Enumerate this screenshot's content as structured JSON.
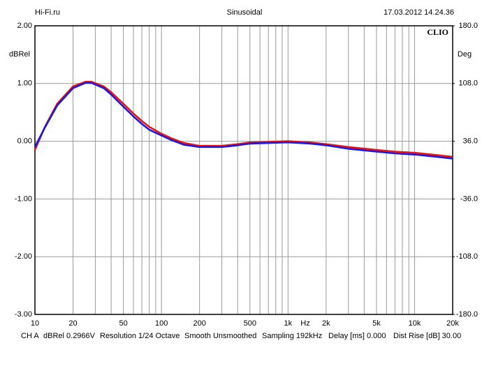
{
  "chart_data": {
    "type": "line",
    "source": "Hi-Fi.ru",
    "title": "Sinusoidal",
    "date": "17.03.2012 14.24.36",
    "logo": "CLIO",
    "ylabel": "dBRel",
    "y2label": "Deg",
    "xlabel": "Hz",
    "footer": [
      "CH A",
      "dBRel 0.2966V",
      "Resolution 1/24 Octave",
      "Smooth Unsmoothed",
      "Sampling 192kHz",
      "Delay [ms] 0.000",
      "Dist Rise [dB] 30.00"
    ],
    "xscale": "log",
    "grid": true,
    "xlim": [
      10,
      20000
    ],
    "xticks": [
      10,
      20,
      50,
      100,
      200,
      500,
      {
        "value": 1000,
        "label": "1k"
      },
      {
        "value": 2000,
        "label": "2k"
      },
      {
        "value": 5000,
        "label": "5k"
      },
      {
        "value": 10000,
        "label": "10k"
      },
      {
        "value": 20000,
        "label": "20k"
      }
    ],
    "xminor": [
      30,
      40,
      60,
      70,
      80,
      90,
      300,
      400,
      600,
      700,
      800,
      900,
      3000,
      4000,
      6000,
      7000,
      8000,
      9000
    ],
    "ylim": [
      -3,
      2
    ],
    "yticks": [
      {
        "value": 2,
        "label": "2.00"
      },
      {
        "value": 1,
        "label": "1.00"
      },
      {
        "value": 0,
        "label": "0.00"
      },
      {
        "value": -1,
        "label": "-1.00"
      },
      {
        "value": -2,
        "label": "-2.00"
      },
      {
        "value": -3,
        "label": "-3.00"
      }
    ],
    "y2lim": [
      -180,
      180
    ],
    "y2ticks": [
      {
        "value": 180,
        "label": "180.0"
      },
      {
        "value": 108,
        "label": "108.0"
      },
      {
        "value": 36,
        "label": "36.0"
      },
      {
        "value": -36,
        "label": "-36.0"
      },
      {
        "value": -108,
        "label": "-108.0"
      },
      {
        "value": -180,
        "label": "-180.0"
      }
    ],
    "x": [
      10,
      12,
      15,
      20,
      25,
      28,
      35,
      40,
      50,
      60,
      70,
      80,
      100,
      120,
      150,
      200,
      300,
      400,
      500,
      700,
      1000,
      1500,
      2000,
      3000,
      5000,
      7000,
      10000,
      15000,
      20000
    ],
    "series": [
      {
        "color": "#e8141a",
        "values": [
          -0.15,
          0.25,
          0.65,
          0.95,
          1.03,
          1.03,
          0.95,
          0.85,
          0.65,
          0.48,
          0.35,
          0.25,
          0.13,
          0.05,
          -0.03,
          -0.08,
          -0.08,
          -0.05,
          -0.02,
          -0.01,
          0.0,
          -0.02,
          -0.05,
          -0.1,
          -0.15,
          -0.18,
          -0.2,
          -0.24,
          -0.27
        ]
      },
      {
        "color": "#1a1adc",
        "values": [
          -0.1,
          0.24,
          0.62,
          0.92,
          1.01,
          1.01,
          0.92,
          0.81,
          0.6,
          0.43,
          0.3,
          0.2,
          0.1,
          0.02,
          -0.06,
          -0.1,
          -0.1,
          -0.07,
          -0.04,
          -0.03,
          -0.02,
          -0.04,
          -0.07,
          -0.13,
          -0.18,
          -0.21,
          -0.23,
          -0.27,
          -0.3
        ]
      }
    ]
  }
}
